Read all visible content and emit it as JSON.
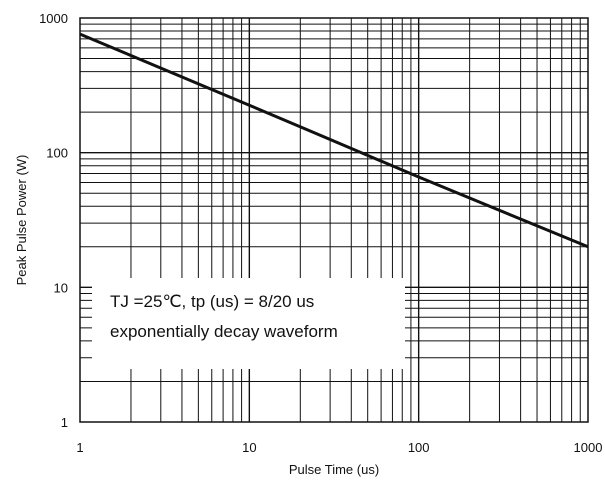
{
  "chart_data": {
    "type": "line",
    "title": "",
    "xlabel": "Pulse Time (us)",
    "ylabel": "Peak Pulse Power (W)",
    "xscale": "log",
    "yscale": "log",
    "xlim": [
      1,
      1000
    ],
    "ylim": [
      1,
      1000
    ],
    "grid": true,
    "x_ticks": [
      "1",
      "10",
      "100",
      "1000"
    ],
    "y_ticks": [
      "1",
      "10",
      "100",
      "1000"
    ],
    "series": [
      {
        "x": [
          1,
          10,
          100,
          1000
        ],
        "y": [
          760,
          225,
          66,
          20
        ]
      }
    ],
    "annotation": {
      "line1": "TJ =25℃, tp (us) = 8/20 us",
      "line2": "exponentially decay waveform"
    },
    "colors": {
      "line": "#111111",
      "grid": "#111111",
      "background": "#ffffff"
    }
  }
}
